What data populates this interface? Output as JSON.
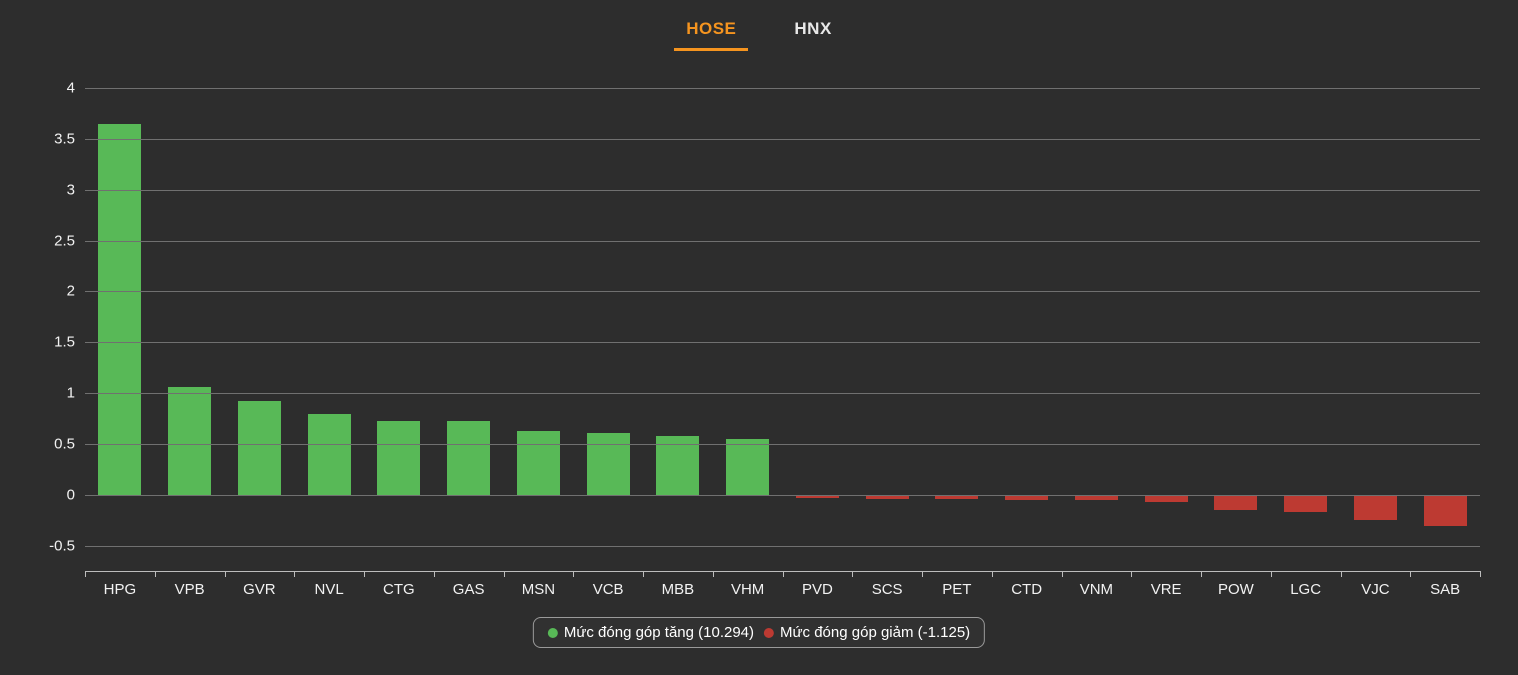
{
  "colors": {
    "background": "#2d2d2d",
    "accent": "#f5941f",
    "positive": "#58b957",
    "negative": "#bd3a32"
  },
  "tabs": [
    {
      "label": "HOSE",
      "active": true
    },
    {
      "label": "HNX",
      "active": false
    }
  ],
  "chart_data": {
    "type": "bar",
    "categories": [
      "HPG",
      "VPB",
      "GVR",
      "NVL",
      "CTG",
      "GAS",
      "MSN",
      "VCB",
      "MBB",
      "VHM",
      "PVD",
      "SCS",
      "PET",
      "CTD",
      "VNM",
      "VRE",
      "POW",
      "LGC",
      "VJC",
      "SAB"
    ],
    "values": [
      3.65,
      1.06,
      0.92,
      0.79,
      0.73,
      0.73,
      0.63,
      0.61,
      0.58,
      0.55,
      -0.03,
      -0.04,
      -0.04,
      -0.05,
      -0.05,
      -0.07,
      -0.15,
      -0.17,
      -0.25,
      -0.31
    ],
    "title": "",
    "xlabel": "",
    "ylabel": "",
    "ylim": [
      -0.75,
      4
    ],
    "yticks": [
      4,
      3.5,
      3,
      2.5,
      2,
      1.5,
      1,
      0.5,
      0,
      -0.5
    ],
    "grid": true,
    "legend_position": "bottom",
    "colors": {
      "positive": "#58b957",
      "negative": "#bd3a32"
    },
    "legend": [
      {
        "label": "Mức đóng góp tăng (10.294)",
        "color": "#58b957"
      },
      {
        "label": "Mức đóng góp giảm (-1.125)",
        "color": "#bd3a32"
      }
    ],
    "totals": {
      "increase": 10.294,
      "decrease": -1.125
    }
  }
}
